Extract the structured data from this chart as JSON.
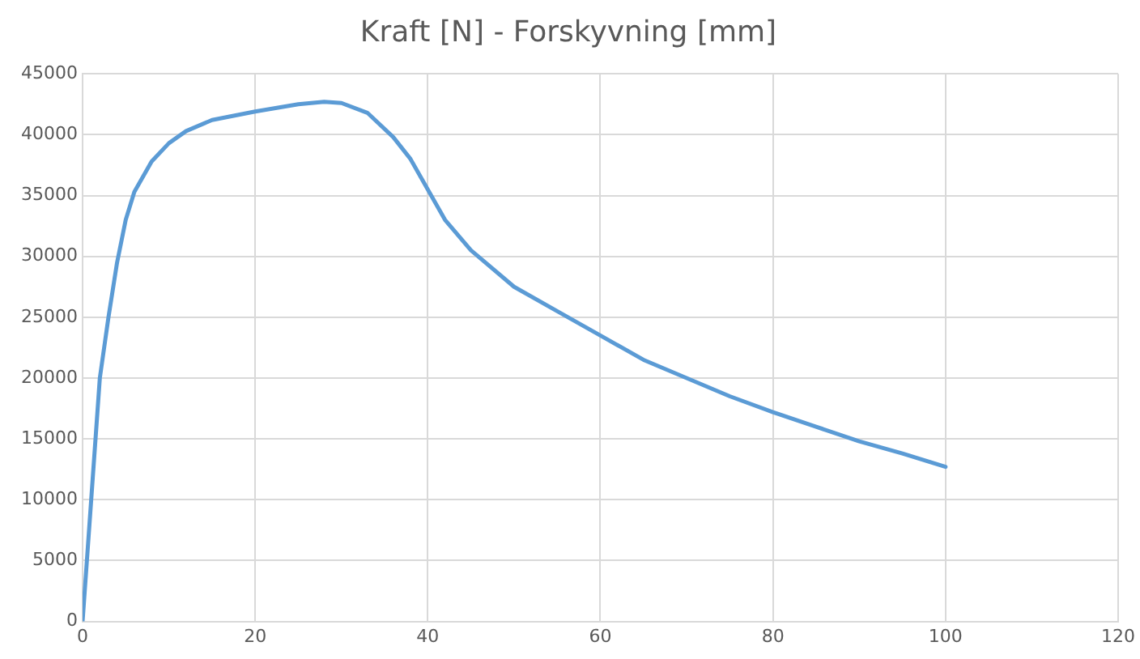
{
  "chart_data": {
    "type": "line",
    "title": "Kraft [N] - Forskyvning [mm]",
    "series": [
      {
        "color": "#5b9bd5",
        "x": [
          0,
          1,
          2,
          3,
          4,
          5,
          6,
          8,
          10,
          12,
          15,
          20,
          25,
          28,
          30,
          33,
          36,
          38,
          40,
          42,
          45,
          50,
          55,
          60,
          65,
          70,
          75,
          80,
          85,
          90,
          95,
          100
        ],
        "values": [
          0,
          10000,
          20000,
          25000,
          29500,
          33000,
          35300,
          37800,
          39300,
          40300,
          41200,
          41900,
          42500,
          42700,
          42600,
          41800,
          39800,
          38000,
          35500,
          33000,
          30500,
          27500,
          25500,
          23500,
          21500,
          20000,
          18500,
          17200,
          16000,
          14800,
          13800,
          12700
        ]
      }
    ],
    "xlim": [
      0,
      120
    ],
    "xticks": [
      0,
      20,
      40,
      60,
      80,
      100,
      120
    ],
    "ylim": [
      0,
      45000
    ],
    "yticks": [
      0,
      5000,
      10000,
      15000,
      20000,
      25000,
      30000,
      35000,
      40000,
      45000
    ],
    "grid": true,
    "legend": false,
    "marker": "none",
    "line_style": "solid"
  }
}
